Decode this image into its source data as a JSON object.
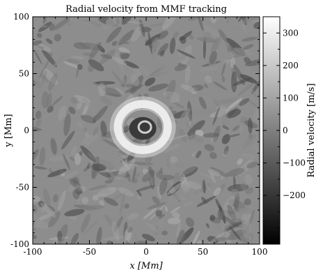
{
  "chart_data": {
    "type": "heatmap",
    "title": "Radial velocity from MMF tracking",
    "xlabel": "x [Mm]",
    "ylabel": "y [Mm]",
    "xlim": [
      -100,
      100
    ],
    "ylim": [
      -100,
      100
    ],
    "xticks": [
      -100,
      -50,
      0,
      50,
      100
    ],
    "yticks": [
      -100,
      -50,
      0,
      50,
      100
    ],
    "colorbar": {
      "label": "Radial velocity [m/s]",
      "range": [
        -350,
        350
      ],
      "ticks": [
        -200,
        -100,
        0,
        100,
        200,
        300
      ],
      "colormap": "grayscale (black = negative, white = positive)"
    },
    "features": [
      {
        "kind": "ring",
        "description": "bright annulus of positive (outward) velocity around the central spot",
        "center_x": -3,
        "center_y": 3,
        "radius": 22,
        "value": 300
      },
      {
        "kind": "core",
        "description": "dark inner region (negative / inward velocity)",
        "center_x": -3,
        "center_y": 3,
        "radius": 10,
        "value": -150
      },
      {
        "kind": "background",
        "description": "mottled grey field with fine-scale structure",
        "value": 0
      }
    ]
  },
  "colors": {
    "background": "#ffffff",
    "axis": "#000000"
  }
}
